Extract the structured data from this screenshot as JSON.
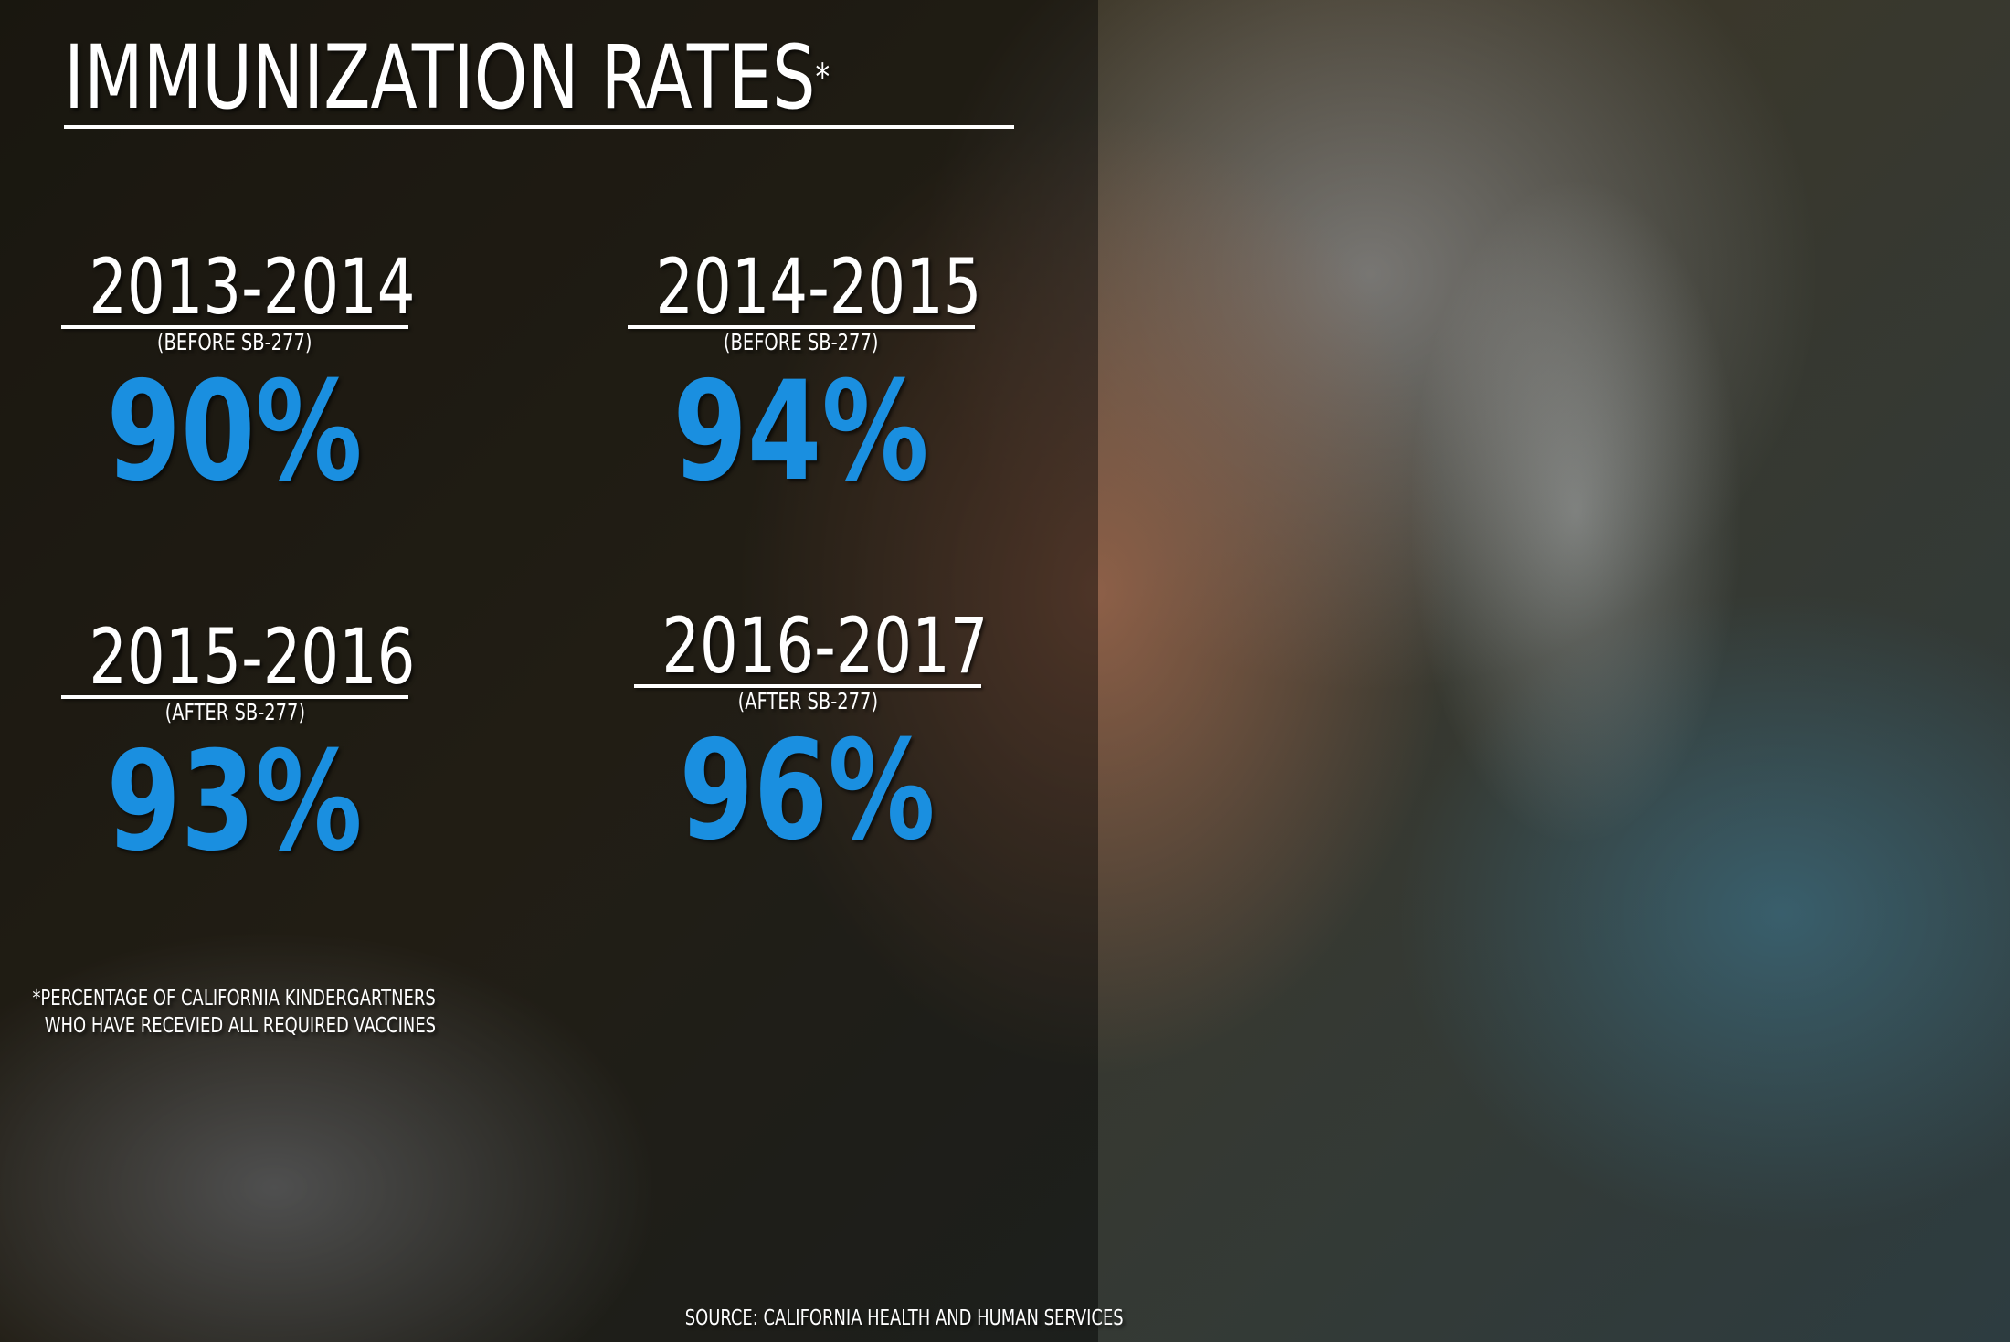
{
  "title": "IMMUNIZATION RATES",
  "title_marker": "*",
  "periods": [
    {
      "years": "2013-2014",
      "note": "(BEFORE SB-277)",
      "rate": "90%"
    },
    {
      "years": "2014-2015",
      "note": "(BEFORE SB-277)",
      "rate": "94%"
    },
    {
      "years": "2015-2016",
      "note": "(AFTER SB-277)",
      "rate": "93%"
    },
    {
      "years": "2016-2017",
      "note": "(AFTER SB-277)",
      "rate": "96%"
    }
  ],
  "footnote": [
    "*PERCENTAGE OF CALIFORNIA KINDERGARTNERS",
    "WHO HAVE RECEVIED ALL REQUIRED VACCINES"
  ],
  "source": "SOURCE: CALIFORNIA HEALTH AND HUMAN SERVICES"
}
